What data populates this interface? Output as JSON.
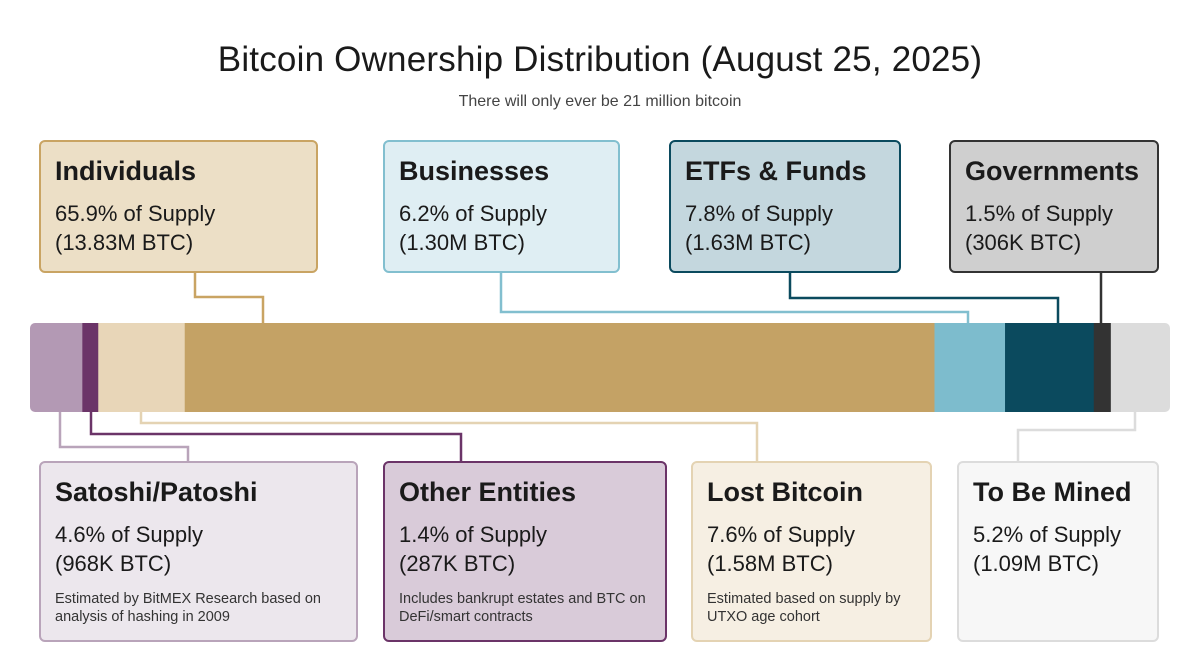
{
  "title": "Bitcoin Ownership Distribution (August 25, 2025)",
  "subtitle": "There will only ever be 21 million bitcoin",
  "chart_data": {
    "type": "bar",
    "orientation": "horizontal-stacked",
    "total_btc": "21 million",
    "segments": [
      {
        "name": "Satoshi/Patoshi",
        "percent": 4.6,
        "btc": "968K BTC",
        "color": "#b399b4"
      },
      {
        "name": "Other Entities",
        "percent": 1.4,
        "btc": "287K BTC",
        "color": "#6b3468"
      },
      {
        "name": "Lost Bitcoin",
        "percent": 7.6,
        "btc": "1.58M BTC",
        "color": "#e8d6b8"
      },
      {
        "name": "Individuals",
        "percent": 65.9,
        "btc": "13.83M BTC",
        "color": "#c4a265"
      },
      {
        "name": "Businesses",
        "percent": 6.2,
        "btc": "1.30M BTC",
        "color": "#7dbccd"
      },
      {
        "name": "ETFs & Funds",
        "percent": 7.8,
        "btc": "1.63M BTC",
        "color": "#0b4a5e"
      },
      {
        "name": "Governments",
        "percent": 1.5,
        "btc": "306K BTC",
        "color": "#333333"
      },
      {
        "name": "To Be Mined",
        "percent": 5.2,
        "btc": "1.09M BTC",
        "color": "#dcdcdc"
      }
    ]
  },
  "cards": {
    "individuals": {
      "name": "Individuals",
      "pct": "65.9% of Supply",
      "btc": "(13.83M BTC)"
    },
    "businesses": {
      "name": "Businesses",
      "pct": "6.2% of Supply",
      "btc": "(1.30M BTC)"
    },
    "etfs": {
      "name": "ETFs & Funds",
      "pct": "7.8% of Supply",
      "btc": "(1.63M BTC)"
    },
    "governments": {
      "name": "Governments",
      "pct": "1.5% of Supply",
      "btc": "(306K BTC)"
    },
    "satoshi": {
      "name": "Satoshi/Patoshi",
      "pct": "4.6% of Supply",
      "btc": "(968K BTC)",
      "note": "Estimated by BitMEX Research based on analysis of hashing in 2009"
    },
    "other": {
      "name": "Other Entities",
      "pct": "1.4% of Supply",
      "btc": "(287K BTC)",
      "note": "Includes bankrupt estates and BTC on DeFi/smart contracts"
    },
    "lost": {
      "name": "Lost Bitcoin",
      "pct": "7.6% of Supply",
      "btc": "(1.58M BTC)",
      "note": "Estimated based on supply by UTXO age cohort"
    },
    "mined": {
      "name": "To Be Mined",
      "pct": "5.2% of Supply",
      "btc": "(1.09M BTC)"
    }
  },
  "colors": {
    "individuals_bg": "#ecdfc6",
    "individuals_border": "#c9a463",
    "businesses_bg": "#dfeef3",
    "businesses_border": "#82bfcf",
    "etfs_bg": "#c4d7de",
    "etfs_border": "#0b4a5e",
    "governments_bg": "#cfcfcf",
    "governments_border": "#333333",
    "satoshi_bg": "#ece7ed",
    "satoshi_border": "#b9a4ba",
    "other_bg": "#d9cbd9",
    "other_border": "#6b3468",
    "lost_bg": "#f6efe3",
    "lost_border": "#e4d3b3",
    "mined_bg": "#f7f7f7",
    "mined_border": "#dcdcdc"
  }
}
